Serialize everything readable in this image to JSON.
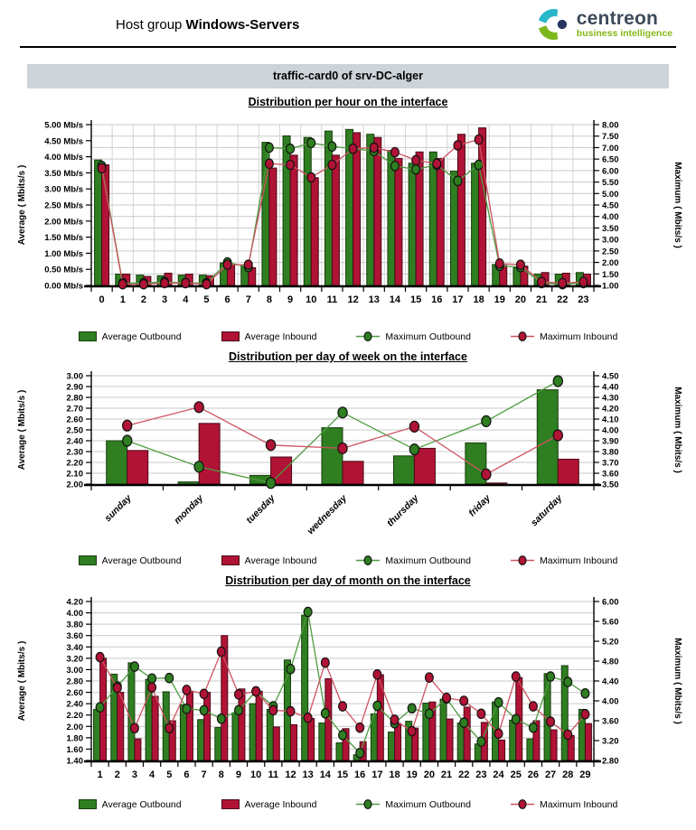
{
  "header": {
    "title_prefix": "Host group",
    "title_bold": "Windows-Servers",
    "logo": {
      "brand": "centreon",
      "tagline": "business intelligence"
    }
  },
  "section": {
    "title": "traffic-card0 of srv-DC-alger"
  },
  "colors": {
    "bar_outbound": "#2f7e21",
    "bar_outbound_border": "#173c0d",
    "bar_inbound": "#b01335",
    "bar_inbound_border": "#4a0a18",
    "line_outbound": "#4e9b40",
    "line_inbound": "#cd5360",
    "grid": "#c9c9c9",
    "section_bg": "#ccd3d9",
    "brand_dark": "#3d4a5a",
    "brand_green": "#85b817",
    "mark_teal": "#28b6c9",
    "mark_green": "#7db71c",
    "mark_navy": "#27355f"
  },
  "legend": {
    "items": [
      {
        "label": "Average Outbound",
        "type": "bar",
        "color": "#2f7e21",
        "border": "#173c0d"
      },
      {
        "label": "Average Inbound",
        "type": "bar",
        "color": "#b01335",
        "border": "#4a0a18"
      },
      {
        "label": "Maximum Outbound",
        "type": "line",
        "color": "#2f7e21",
        "line_color": "#4e9b40"
      },
      {
        "label": "Maximum Inbound",
        "type": "line",
        "color": "#b01335",
        "line_color": "#cd5360"
      }
    ]
  },
  "chart_data": [
    {
      "title": "Distribution per hour on the interface",
      "type": "bar+line",
      "grid": "right",
      "vgrid": true,
      "rotate_labels": false,
      "categories": [
        "0",
        "1",
        "2",
        "3",
        "4",
        "5",
        "6",
        "7",
        "8",
        "9",
        "10",
        "11",
        "12",
        "13",
        "14",
        "15",
        "16",
        "17",
        "18",
        "19",
        "20",
        "21",
        "22",
        "23"
      ],
      "left_axis": {
        "title": "Average ( Mbits/s )",
        "min": 0,
        "max": 5,
        "step": 0.5,
        "tick_suffix": " Mb/s"
      },
      "right_axis": {
        "title": "Maximum ( Mbits/s )",
        "min": 1,
        "max": 8,
        "step": 0.5
      },
      "bars": [
        {
          "name": "Average Outbound",
          "color": "#2f7e21",
          "border": "#173c0d",
          "values": [
            3.9,
            0.35,
            0.32,
            0.3,
            0.32,
            0.32,
            0.7,
            0.6,
            4.45,
            4.65,
            4.6,
            4.8,
            4.85,
            4.7,
            4.2,
            3.8,
            4.15,
            3.55,
            3.8,
            0.65,
            0.55,
            0.35,
            0.35,
            0.4
          ]
        },
        {
          "name": "Average Inbound",
          "color": "#b01335",
          "border": "#4a0a18",
          "values": [
            3.75,
            0.35,
            0.28,
            0.38,
            0.35,
            0.3,
            0.65,
            0.55,
            3.65,
            4.05,
            3.35,
            4.05,
            4.75,
            4.6,
            3.95,
            4.15,
            3.95,
            4.7,
            4.9,
            0.62,
            0.6,
            0.4,
            0.38,
            0.35
          ]
        }
      ],
      "lines": [
        {
          "name": "Maximum Outbound",
          "line_color": "#4e9b40",
          "dot_color": "#2f7e21",
          "values": [
            6.2,
            1.1,
            1.1,
            1.15,
            1.1,
            1.1,
            2.0,
            1.8,
            7.0,
            6.95,
            7.2,
            7.05,
            6.95,
            6.85,
            6.2,
            6.05,
            6.25,
            5.55,
            6.25,
            1.85,
            1.8,
            1.1,
            1.05,
            1.1
          ]
        },
        {
          "name": "Maximum Inbound",
          "line_color": "#cd5360",
          "dot_color": "#b01335",
          "values": [
            6.1,
            1.05,
            1.05,
            1.1,
            1.1,
            1.05,
            1.9,
            1.9,
            6.3,
            6.25,
            5.7,
            6.25,
            6.95,
            7.0,
            6.8,
            6.45,
            6.3,
            7.1,
            7.35,
            1.95,
            1.9,
            1.15,
            1.1,
            1.15
          ]
        }
      ]
    },
    {
      "title": "Distribution per day of week on the interface",
      "type": "bar+line",
      "grid": "left",
      "vgrid": false,
      "rotate_labels": true,
      "categories": [
        "sunday",
        "monday",
        "tuesday",
        "wednesday",
        "thursday",
        "friday",
        "saturday"
      ],
      "left_axis": {
        "title": "Average ( Mbits/s )",
        "min": 2.0,
        "max": 3.0,
        "step": 0.1
      },
      "right_axis": {
        "title": "Maximum ( Mbits/s )",
        "min": 3.5,
        "max": 4.5,
        "step": 0.1
      },
      "bars": [
        {
          "name": "Average Outbound",
          "color": "#2f7e21",
          "border": "#173c0d",
          "values": [
            2.4,
            2.02,
            2.08,
            2.52,
            2.26,
            2.38,
            2.87
          ]
        },
        {
          "name": "Average Inbound",
          "color": "#b01335",
          "border": "#4a0a18",
          "values": [
            2.31,
            2.56,
            2.25,
            2.21,
            2.33,
            2.01,
            2.23
          ]
        }
      ],
      "lines": [
        {
          "name": "Maximum Outbound",
          "line_color": "#4e9b40",
          "dot_color": "#2f7e21",
          "values": [
            3.9,
            3.66,
            3.51,
            4.16,
            3.82,
            4.08,
            4.45
          ]
        },
        {
          "name": "Maximum Inbound",
          "line_color": "#cd5360",
          "dot_color": "#b01335",
          "values": [
            4.04,
            4.21,
            3.86,
            3.83,
            4.03,
            3.59,
            3.95
          ]
        }
      ]
    },
    {
      "title": "Distribution per day of month on the interface",
      "type": "bar+line",
      "grid": "left",
      "vgrid": false,
      "rotate_labels": false,
      "categories": [
        "1",
        "2",
        "3",
        "4",
        "5",
        "6",
        "7",
        "8",
        "9",
        "10",
        "11",
        "12",
        "13",
        "14",
        "15",
        "16",
        "17",
        "18",
        "19",
        "20",
        "21",
        "22",
        "23",
        "24",
        "25",
        "26",
        "27",
        "28",
        "29"
      ],
      "left_axis": {
        "title": "Average ( Mbits/s )",
        "min": 1.4,
        "max": 4.2,
        "step": 0.2
      },
      "right_axis": {
        "title": "Maximum ( Mbits/s )",
        "min": 2.8,
        "max": 6.0,
        "step": 0.4
      },
      "bars": [
        {
          "name": "Average Outbound",
          "color": "#2f7e21",
          "border": "#173c0d",
          "values": [
            2.3,
            2.92,
            3.12,
            2.83,
            2.61,
            2.38,
            2.12,
            1.98,
            2.24,
            2.4,
            2.3,
            3.17,
            3.96,
            2.06,
            1.71,
            1.5,
            2.22,
            1.9,
            2.09,
            2.41,
            2.48,
            2.06,
            1.69,
            2.43,
            2.11,
            1.78,
            2.93,
            3.07,
            2.3
          ]
        },
        {
          "name": "Average Inbound",
          "color": "#b01335",
          "border": "#4a0a18",
          "values": [
            3.2,
            2.6,
            1.78,
            2.53,
            2.1,
            2.62,
            2.6,
            3.6,
            2.66,
            2.62,
            1.99,
            2.03,
            2.14,
            2.84,
            1.96,
            1.73,
            2.91,
            2.05,
            1.97,
            2.43,
            2.13,
            2.34,
            2.07,
            1.76,
            2.86,
            2.1,
            1.94,
            1.84,
            2.05
          ]
        }
      ],
      "lines": [
        {
          "name": "Maximum Outbound",
          "line_color": "#4e9b40",
          "dot_color": "#2f7e21",
          "values": [
            3.87,
            4.29,
            4.69,
            4.45,
            4.46,
            3.84,
            3.81,
            3.64,
            3.81,
            4.19,
            3.89,
            4.64,
            5.79,
            3.75,
            3.31,
            2.95,
            3.9,
            3.55,
            3.85,
            3.74,
            4.05,
            3.56,
            3.18,
            3.97,
            3.63,
            3.46,
            4.49,
            4.38,
            4.15
          ]
        },
        {
          "name": "Maximum Inbound",
          "line_color": "#cd5360",
          "dot_color": "#b01335",
          "values": [
            4.88,
            4.26,
            3.45,
            4.27,
            3.45,
            4.22,
            4.14,
            4.99,
            4.13,
            4.19,
            3.81,
            3.79,
            3.66,
            4.77,
            3.89,
            3.46,
            4.53,
            3.62,
            3.39,
            4.47,
            4.06,
            4.0,
            3.74,
            3.34,
            4.49,
            3.89,
            3.58,
            3.32,
            3.73
          ]
        }
      ]
    }
  ]
}
